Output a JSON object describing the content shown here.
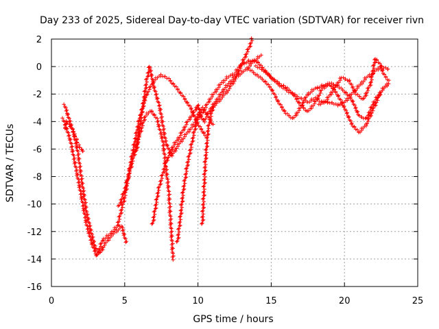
{
  "chart_data": {
    "type": "scatter",
    "title": "Day 233 of 2025, Sidereal Day-to-day VTEC variation (SDTVAR) for receiver rivn",
    "xlabel": "GPS time / hours",
    "ylabel": "SDTVAR / TECUs",
    "xlim": [
      0,
      25
    ],
    "ylim": [
      -16,
      2
    ],
    "xticks": [
      "0",
      "5",
      "10",
      "15",
      "20",
      "25"
    ],
    "yticks": [
      "2",
      "0",
      "-2",
      "-4",
      "-6",
      "-8",
      "-10",
      "-12",
      "-14",
      "-16"
    ],
    "grid": true,
    "marker": "+",
    "color": "#ff0000",
    "series": [
      {
        "name": "trace-1",
        "x": [
          0.9,
          1.2,
          1.5,
          1.8,
          2.1,
          2.4,
          2.7,
          3.0,
          3.3,
          3.6,
          4.0,
          4.4,
          4.8,
          5.1
        ],
        "y": [
          -2.8,
          -3.8,
          -4.8,
          -6.2,
          -8.5,
          -10.6,
          -12.0,
          -13.2,
          -13.6,
          -13.0,
          -12.4,
          -12.0,
          -11.6,
          -12.8
        ]
      },
      {
        "name": "trace-2",
        "x": [
          0.8,
          1.0,
          1.3,
          1.6,
          2.0,
          2.4,
          2.8,
          3.1,
          3.5,
          4.0,
          4.5,
          5.0,
          5.5,
          6.0,
          6.5,
          7.0,
          7.5,
          8.0,
          8.5,
          9.0,
          9.5,
          10.0,
          10.5
        ],
        "y": [
          -3.8,
          -4.4,
          -5.4,
          -7.0,
          -9.2,
          -11.5,
          -13.0,
          -13.8,
          -12.6,
          -12.2,
          -11.6,
          -9.5,
          -6.5,
          -3.8,
          -2.0,
          -1.0,
          -0.6,
          -0.9,
          -1.5,
          -2.2,
          -3.0,
          -4.2,
          -5.0
        ]
      },
      {
        "name": "trace-3",
        "x": [
          2.2,
          2.0,
          1.8,
          1.6,
          1.4,
          1.2,
          1.0,
          0.9
        ],
        "y": [
          -6.2,
          -6.0,
          -5.6,
          -5.0,
          -4.5,
          -4.2,
          -4.0,
          -4.5
        ]
      },
      {
        "name": "trace-4",
        "x": [
          4.6,
          5.0,
          5.5,
          6.0,
          6.4,
          6.8,
          7.2,
          7.6,
          8.0,
          8.3
        ],
        "y": [
          -10.2,
          -9.0,
          -7.0,
          -5.0,
          -3.6,
          -3.2,
          -3.8,
          -5.4,
          -9.0,
          -14.0
        ]
      },
      {
        "name": "trace-5",
        "x": [
          5.8,
          6.0,
          6.3,
          6.5,
          6.7,
          7.0,
          7.4,
          7.8,
          8.2,
          8.6,
          9.0,
          9.5,
          10.0,
          10.4,
          10.8,
          11.2,
          11.6,
          12.0,
          12.5,
          13.0,
          13.5,
          13.7
        ],
        "y": [
          -6.2,
          -4.5,
          -2.5,
          -1.0,
          0.0,
          -1.5,
          -3.0,
          -5.5,
          -6.5,
          -5.8,
          -5.2,
          -4.5,
          -3.8,
          -3.2,
          -2.4,
          -1.8,
          -1.2,
          -0.8,
          -0.5,
          0.2,
          1.4,
          2.0
        ]
      },
      {
        "name": "trace-6",
        "x": [
          6.9,
          7.3,
          7.8,
          8.3,
          8.8,
          9.3,
          9.8,
          10.0,
          10.2,
          10.4,
          10.8,
          11.3,
          11.8,
          12.3,
          12.8,
          13.3,
          13.8,
          14.3
        ],
        "y": [
          -11.5,
          -9.0,
          -7.0,
          -5.8,
          -5.0,
          -4.0,
          -3.2,
          -2.8,
          -3.6,
          -4.0,
          -3.2,
          -2.4,
          -1.6,
          -1.0,
          -0.6,
          -0.2,
          0.4,
          0.8
        ]
      },
      {
        "name": "trace-7",
        "x": [
          8.6,
          8.8,
          9.0,
          9.3,
          9.6,
          9.8,
          10.0,
          10.3,
          10.6,
          11.0
        ],
        "y": [
          -12.8,
          -11.0,
          -9.0,
          -7.0,
          -5.5,
          -4.5,
          -3.5,
          -3.0,
          -3.4,
          -4.2
        ]
      },
      {
        "name": "trace-8",
        "x": [
          10.3,
          10.5,
          10.7,
          11.0,
          11.5,
          12.0,
          12.5,
          13.0,
          13.5,
          14.0,
          14.5,
          15.0,
          15.5,
          16.0,
          16.5,
          17.0,
          17.5,
          18.0,
          18.5,
          19.0,
          19.5,
          20.0,
          20.5,
          21.0,
          21.5,
          22.0,
          22.5,
          23.0
        ],
        "y": [
          -11.5,
          -7.0,
          -4.5,
          -3.0,
          -2.4,
          -1.8,
          -1.0,
          0.2,
          0.4,
          0.4,
          -0.2,
          -0.8,
          -1.3,
          -1.7,
          -2.0,
          -2.3,
          -2.6,
          -2.3,
          -2.6,
          -2.6,
          -2.8,
          -2.6,
          -2.0,
          -1.4,
          -0.8,
          -0.4,
          0.0,
          -0.2
        ]
      },
      {
        "name": "trace-9",
        "x": [
          13.5,
          14.0,
          14.5,
          15.0,
          15.5,
          16.0,
          16.5,
          17.0,
          17.5,
          18.0,
          18.5,
          19.0,
          19.5,
          20.0,
          20.5,
          21.0,
          21.5,
          22.0,
          22.5,
          23.0
        ],
        "y": [
          -0.2,
          -0.6,
          -1.0,
          -1.6,
          -2.6,
          -3.4,
          -3.8,
          -3.0,
          -2.0,
          -1.6,
          -1.4,
          -1.3,
          -2.0,
          -3.0,
          -4.2,
          -4.8,
          -4.2,
          -3.0,
          -1.8,
          -1.2
        ]
      },
      {
        "name": "trace-10",
        "x": [
          14.0,
          14.5,
          15.0,
          15.5,
          16.0,
          16.5,
          17.0,
          17.5,
          18.0,
          18.5,
          19.0,
          19.5,
          20.0,
          20.5,
          21.0,
          21.5,
          22.0,
          22.5,
          23.0
        ],
        "y": [
          0.0,
          -0.3,
          -0.8,
          -1.2,
          -1.5,
          -2.0,
          -2.8,
          -3.3,
          -2.6,
          -1.6,
          -1.2,
          -1.4,
          -1.8,
          -2.4,
          -3.6,
          -3.8,
          -2.6,
          -1.8,
          -1.2
        ]
      },
      {
        "name": "trace-11",
        "x": [
          18.3,
          18.8,
          19.3,
          19.8,
          20.3,
          20.8,
          21.3,
          21.8,
          22.1,
          22.4,
          22.7,
          23.0
        ],
        "y": [
          -2.8,
          -2.4,
          -1.6,
          -0.8,
          -1.0,
          -2.0,
          -2.4,
          -1.2,
          0.6,
          0.2,
          -0.6,
          -1.0
        ]
      }
    ]
  }
}
